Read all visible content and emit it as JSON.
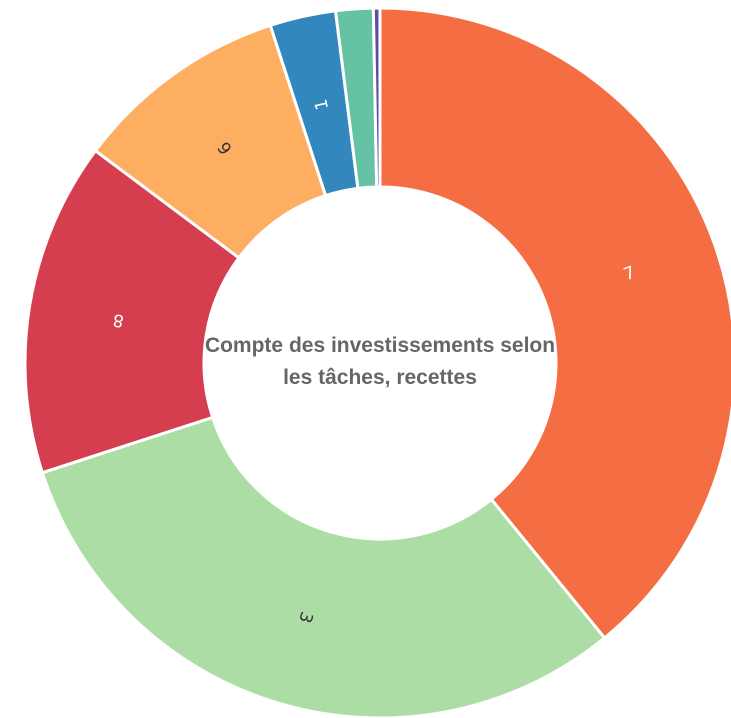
{
  "chart_data": {
    "type": "donut",
    "title": "Compte des investissements selon les tâches, recettes",
    "categories": [
      "7",
      "3",
      "8",
      "6",
      "1",
      null,
      null
    ],
    "values": [
      39.1,
      30.9,
      15.2,
      9.8,
      3.0,
      1.7,
      0.3
    ],
    "colors": [
      "#f46d43",
      "#abdda4",
      "#d53e4f",
      "#fdae61",
      "#3288bd",
      "#66c2a5",
      "#5e4fa2"
    ]
  }
}
